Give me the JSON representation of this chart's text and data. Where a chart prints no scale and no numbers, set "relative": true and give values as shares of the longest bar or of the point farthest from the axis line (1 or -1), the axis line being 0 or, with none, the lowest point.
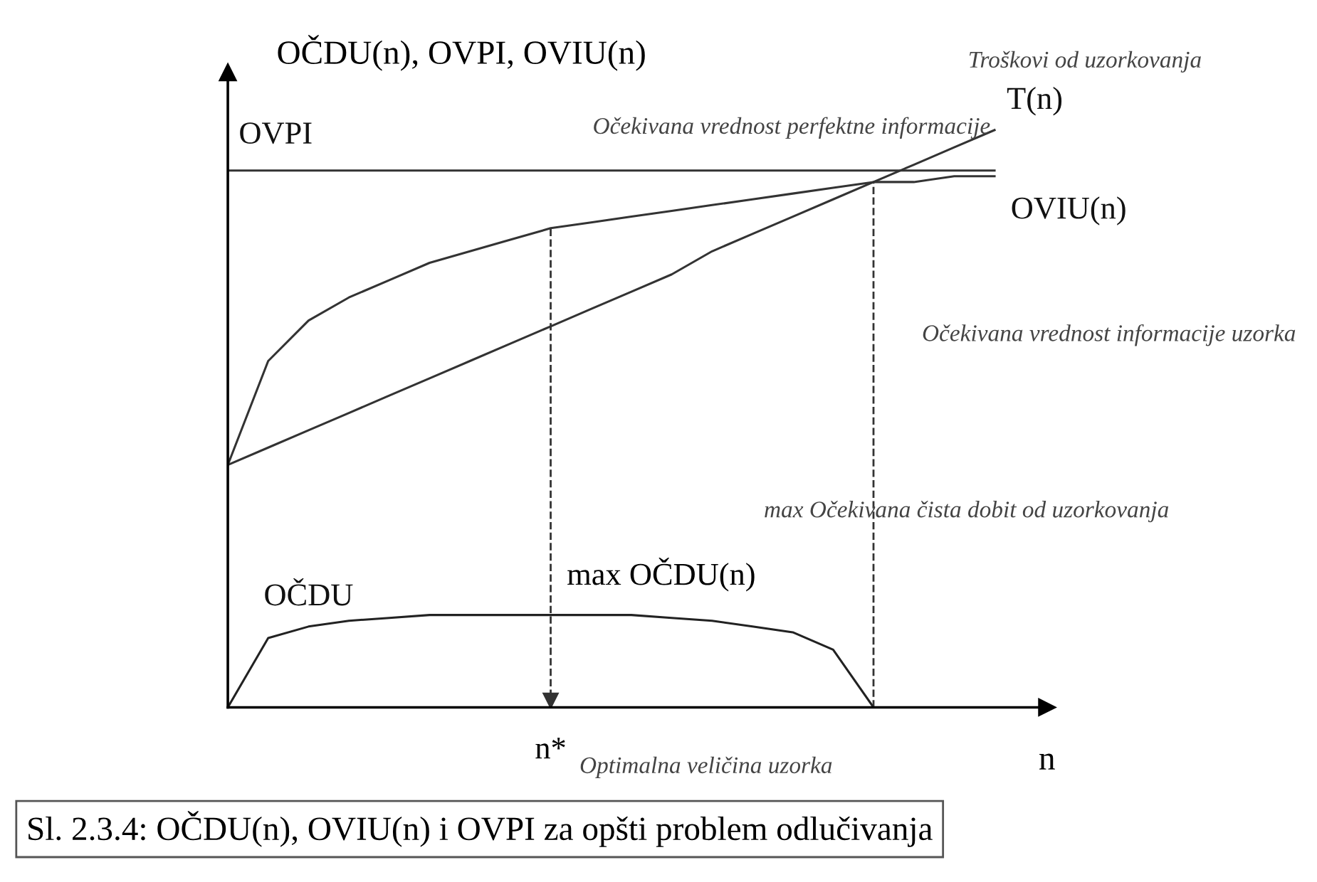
{
  "chart_data": {
    "type": "line",
    "relative": true,
    "title": "Sl. 2.3.4: OČDU(n), OVIU(n) i OVPI za opšti problem odlučivanja",
    "ylabel": "OČDU(n), OVPI, OVIU(n)",
    "xlabel": "n",
    "categories": [
      null,
      null,
      null,
      null,
      null,
      null,
      null,
      null,
      null,
      null,
      null,
      null,
      null,
      null,
      null,
      null,
      null,
      null,
      null,
      null
    ],
    "legend": false,
    "marker": "none",
    "line_style": "solid",
    "series": [
      {
        "name": "OVPI",
        "color": "#333333",
        "values": [
          0.93,
          0.93,
          0.93,
          0.93,
          0.93,
          0.93,
          0.93,
          0.93,
          0.93,
          0.93,
          0.93,
          0.93,
          0.93,
          0.93,
          0.93,
          0.93,
          0.93,
          0.93,
          0.93,
          0.93
        ]
      },
      {
        "name": "T(n)",
        "color": "#333333",
        "values": [
          0.42,
          0.45,
          0.48,
          0.51,
          0.54,
          0.57,
          0.6,
          0.63,
          0.66,
          0.69,
          0.72,
          0.75,
          0.79,
          0.82,
          0.85,
          0.88,
          0.91,
          0.94,
          0.97,
          1.0
        ]
      },
      {
        "name": "OVIU(n)",
        "color": "#333333",
        "values": [
          0.42,
          0.6,
          0.67,
          0.71,
          0.74,
          0.77,
          0.79,
          0.81,
          0.83,
          0.84,
          0.85,
          0.86,
          0.87,
          0.88,
          0.89,
          0.9,
          0.91,
          0.91,
          0.92,
          0.92
        ]
      },
      {
        "name": "OČDU",
        "color": "#222222",
        "values": [
          0,
          0.12,
          0.14,
          0.15,
          0.155,
          0.16,
          0.16,
          0.16,
          0.16,
          0.16,
          0.16,
          0.155,
          0.15,
          0.14,
          0.13,
          0.1,
          0,
          null,
          null,
          null
        ]
      }
    ],
    "annotations": [
      "max OČDU(n)",
      "n*",
      "Očekivana vrednost perfektne informacije",
      "Troškovi od uzorkovanja",
      "Očekivana vrednost informacije uzorka",
      "max Očekivana čista dobit od uzorkovanja",
      "Optimalna veličina uzorka"
    ]
  }
}
